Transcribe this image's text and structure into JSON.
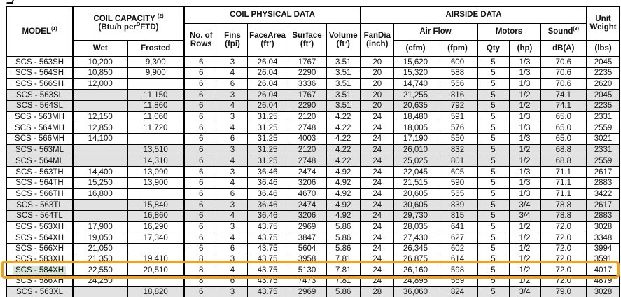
{
  "colors": {
    "accent_orange": "#efa125",
    "row_shade": "#e2e2e2",
    "model_highlight": "#d6e7da",
    "border": "#000000"
  },
  "table": {
    "headers": {
      "model": "MODEL",
      "model_sup": "(1)",
      "coil_capacity": "COIL CAPACITY",
      "coil_capacity_sup": "(2)",
      "coil_capacity_unit_a": "(Btu/h per",
      "coil_capacity_unit_sup": "O",
      "coil_capacity_unit_b": "FTD)",
      "wet": "Wet",
      "frosted": "Frosted",
      "coil_physical": "COIL PHYSICAL DATA",
      "rows_l1": "No. of",
      "rows_l2": "Rows",
      "fins_l1": "Fins",
      "fins_l2": "(fpi)",
      "facearea_l1": "FaceArea",
      "facearea_l2": "(ft²)",
      "surface_l1": "Surface",
      "surface_l2": "(ft²)",
      "volume_l1": "Volume",
      "volume_l2": "(ft³)",
      "airside": "AIRSIDE DATA",
      "fandia_l1": "FanDia",
      "fandia_l2": "(inch)",
      "airflow": "Air Flow",
      "cfm": "(cfm)",
      "fpm": "(fpm)",
      "motors": "Motors",
      "qty": "Qty",
      "hp": "(hp)",
      "sound": "Sound",
      "sound_sup": "(3)",
      "dba": "dB(A)",
      "unit_l1": "Unit",
      "unit_l2": "Weight",
      "lbs": "(lbs)"
    },
    "rows": [
      {
        "cells": [
          "SCS - 563SH",
          "10,200",
          "9,300",
          "6",
          "3",
          "26.04",
          "1767",
          "3.51",
          "20",
          "15,620",
          "600",
          "5",
          "1/3",
          "70.6",
          "2045"
        ],
        "shaded": false,
        "group_start": false,
        "highlighted": false
      },
      {
        "cells": [
          "SCS - 564SH",
          "10,850",
          "9,900",
          "6",
          "4",
          "26.04",
          "2290",
          "3.51",
          "20",
          "15,320",
          "588",
          "5",
          "1/3",
          "70.6",
          "2235"
        ],
        "shaded": false,
        "group_start": false,
        "highlighted": false
      },
      {
        "cells": [
          "SCS - 566SH",
          "12,000",
          "",
          "6",
          "6",
          "26.04",
          "3336",
          "3.51",
          "20",
          "14,740",
          "566",
          "5",
          "1/3",
          "70.6",
          "2620"
        ],
        "shaded": false,
        "group_start": false,
        "highlighted": false
      },
      {
        "cells": [
          "SCS - 563SL",
          "",
          "11,150",
          "6",
          "3",
          "26.04",
          "1767",
          "3.51",
          "20",
          "21,255",
          "816",
          "5",
          "1/2",
          "74.1",
          "2045"
        ],
        "shaded": true,
        "group_start": true,
        "highlighted": false
      },
      {
        "cells": [
          "SCS - 564SL",
          "",
          "11,860",
          "6",
          "4",
          "26.04",
          "2290",
          "3.51",
          "20",
          "20,635",
          "792",
          "5",
          "1/2",
          "74.1",
          "2235"
        ],
        "shaded": true,
        "group_start": false,
        "highlighted": false
      },
      {
        "cells": [
          "SCS - 563MH",
          "12,150",
          "11,060",
          "6",
          "3",
          "31.25",
          "2120",
          "4.22",
          "24",
          "18,480",
          "591",
          "5",
          "1/3",
          "65.0",
          "2331"
        ],
        "shaded": false,
        "group_start": true,
        "highlighted": false
      },
      {
        "cells": [
          "SCS - 564MH",
          "12,850",
          "11,720",
          "6",
          "4",
          "31.25",
          "2748",
          "4.22",
          "24",
          "18,005",
          "576",
          "5",
          "1/3",
          "65.0",
          "2559"
        ],
        "shaded": false,
        "group_start": false,
        "highlighted": false
      },
      {
        "cells": [
          "SCS - 566MH",
          "14,100",
          "",
          "6",
          "6",
          "31.25",
          "4003",
          "4.22",
          "24",
          "17,190",
          "550",
          "5",
          "1/3",
          "65.0",
          "3021"
        ],
        "shaded": false,
        "group_start": false,
        "highlighted": false
      },
      {
        "cells": [
          "SCS - 563ML",
          "",
          "13,510",
          "6",
          "3",
          "31.25",
          "2120",
          "4.22",
          "24",
          "26,010",
          "832",
          "5",
          "1/2",
          "68.8",
          "2331"
        ],
        "shaded": true,
        "group_start": true,
        "highlighted": false
      },
      {
        "cells": [
          "SCS - 564ML",
          "",
          "14,310",
          "6",
          "4",
          "31.25",
          "2748",
          "4.22",
          "24",
          "25,025",
          "801",
          "5",
          "1/2",
          "68.8",
          "2559"
        ],
        "shaded": true,
        "group_start": false,
        "highlighted": false
      },
      {
        "cells": [
          "SCS - 563TH",
          "14,400",
          "13,090",
          "6",
          "3",
          "36.46",
          "2474",
          "4.92",
          "24",
          "22,045",
          "605",
          "5",
          "1/3",
          "71.1",
          "2617"
        ],
        "shaded": false,
        "group_start": true,
        "highlighted": false
      },
      {
        "cells": [
          "SCS - 564TH",
          "15,250",
          "13,900",
          "6",
          "4",
          "36.46",
          "3206",
          "4.92",
          "24",
          "21,515",
          "590",
          "5",
          "1/3",
          "71.1",
          "2883"
        ],
        "shaded": false,
        "group_start": false,
        "highlighted": false
      },
      {
        "cells": [
          "SCS - 566TH",
          "16,800",
          "",
          "6",
          "6",
          "36.46",
          "4670",
          "4.92",
          "24",
          "20,605",
          "565",
          "5",
          "1/3",
          "71.1",
          "3422"
        ],
        "shaded": false,
        "group_start": false,
        "highlighted": false
      },
      {
        "cells": [
          "SCS - 563TL",
          "",
          "15,840",
          "6",
          "3",
          "36.46",
          "2474",
          "4.92",
          "24",
          "30,605",
          "839",
          "5",
          "3/4",
          "78.8",
          "2617"
        ],
        "shaded": true,
        "group_start": true,
        "highlighted": false
      },
      {
        "cells": [
          "SCS - 564TL",
          "",
          "16,860",
          "6",
          "4",
          "36.46",
          "3206",
          "4.92",
          "24",
          "29,730",
          "815",
          "5",
          "3/4",
          "78.8",
          "2883"
        ],
        "shaded": true,
        "group_start": false,
        "highlighted": false
      },
      {
        "cells": [
          "SCS - 563XH",
          "17,900",
          "16,290",
          "6",
          "3",
          "43.75",
          "2969",
          "5.86",
          "24",
          "28,035",
          "641",
          "5",
          "1/2",
          "72.0",
          "3028"
        ],
        "shaded": false,
        "group_start": true,
        "highlighted": false
      },
      {
        "cells": [
          "SCS - 564XH",
          "19,050",
          "17,340",
          "6",
          "4",
          "43.75",
          "3847",
          "5.86",
          "24",
          "27,430",
          "627",
          "5",
          "1/2",
          "72.0",
          "3348"
        ],
        "shaded": false,
        "group_start": false,
        "highlighted": false
      },
      {
        "cells": [
          "SCS - 566XH",
          "21,050",
          "",
          "6",
          "6",
          "43.75",
          "5604",
          "5.86",
          "24",
          "26,345",
          "602",
          "5",
          "1/2",
          "72.0",
          "3994"
        ],
        "shaded": false,
        "group_start": false,
        "highlighted": false
      },
      {
        "cells": [
          "SCS - 583XH",
          "21,350",
          "19,410",
          "8",
          "3",
          "43.75",
          "3958",
          "7.81",
          "24",
          "26,875",
          "614",
          "5",
          "1/2",
          "72.0",
          "3591"
        ],
        "shaded": false,
        "group_start": false,
        "highlighted": false
      },
      {
        "cells": [
          "SCS - 584XH",
          "22,550",
          "20,510",
          "8",
          "4",
          "43.75",
          "5130",
          "7.81",
          "24",
          "26,160",
          "598",
          "5",
          "1/2",
          "72.0",
          "4017"
        ],
        "shaded": false,
        "group_start": false,
        "highlighted": true
      },
      {
        "cells": [
          "SCS - 586XH",
          "24,250",
          "",
          "8",
          "6",
          "43.75",
          "7473",
          "7.81",
          "24",
          "24,895",
          "569",
          "5",
          "1/2",
          "72.0",
          "4879"
        ],
        "shaded": false,
        "group_start": false,
        "highlighted": false
      },
      {
        "cells": [
          "SCS - 563XL",
          "",
          "18,820",
          "6",
          "3",
          "43.75",
          "2969",
          "5.86",
          "28",
          "36,060",
          "824",
          "5",
          "3/4",
          "79.0",
          "3028"
        ],
        "shaded": true,
        "group_start": true,
        "highlighted": false
      }
    ]
  }
}
